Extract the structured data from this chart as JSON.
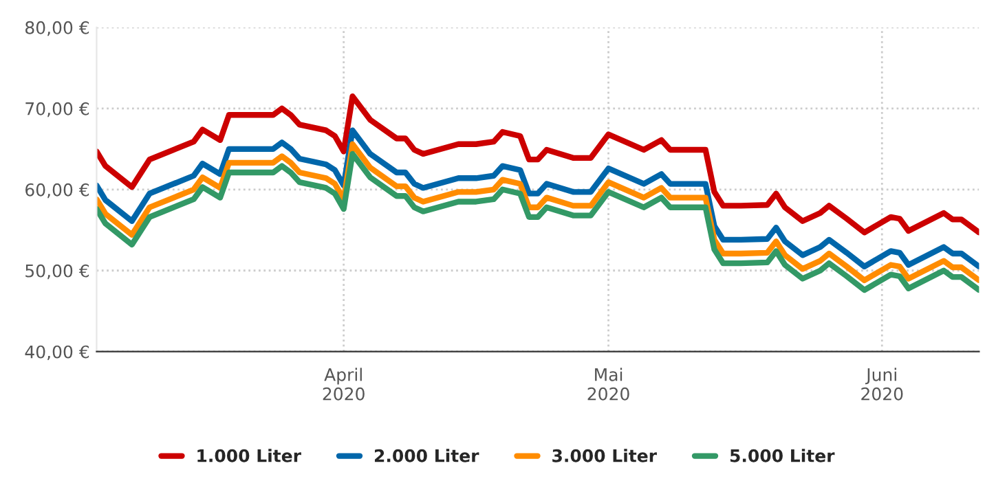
{
  "chart_data": {
    "type": "line",
    "x": [
      "2020-03-04",
      "2020-03-05",
      "2020-03-08",
      "2020-03-10",
      "2020-03-15",
      "2020-03-16",
      "2020-03-18",
      "2020-03-19",
      "2020-03-24",
      "2020-03-25",
      "2020-03-26",
      "2020-03-27",
      "2020-03-30",
      "2020-03-31",
      "2020-04-01",
      "2020-04-02",
      "2020-04-04",
      "2020-04-07",
      "2020-04-08",
      "2020-04-09",
      "2020-04-10",
      "2020-04-14",
      "2020-04-16",
      "2020-04-18",
      "2020-04-19",
      "2020-04-21",
      "2020-04-22",
      "2020-04-23",
      "2020-04-24",
      "2020-04-27",
      "2020-04-29",
      "2020-05-01",
      "2020-05-05",
      "2020-05-07",
      "2020-05-08",
      "2020-05-12",
      "2020-05-13",
      "2020-05-14",
      "2020-05-16",
      "2020-05-19",
      "2020-05-20",
      "2020-05-21",
      "2020-05-23",
      "2020-05-25",
      "2020-05-26",
      "2020-05-28",
      "2020-05-30",
      "2020-06-02",
      "2020-06-03",
      "2020-06-04",
      "2020-06-08",
      "2020-06-09",
      "2020-06-10",
      "2020-06-12"
    ],
    "series": [
      {
        "name": "1.000 Liter",
        "color": "#cc0000",
        "values": [
          64.7,
          62.9,
          60.3,
          63.7,
          65.9,
          67.4,
          66.1,
          69.2,
          69.2,
          70.0,
          69.2,
          68.0,
          67.3,
          66.6,
          64.7,
          71.5,
          68.6,
          66.3,
          66.3,
          64.9,
          64.4,
          65.6,
          65.6,
          65.9,
          67.1,
          66.6,
          63.7,
          63.7,
          64.9,
          63.9,
          63.9,
          66.8,
          64.9,
          66.1,
          64.9,
          64.9,
          59.7,
          58.0,
          58.0,
          58.1,
          59.5,
          57.8,
          56.1,
          57.1,
          58.0,
          56.4,
          54.7,
          56.6,
          56.4,
          54.9,
          57.1,
          56.3,
          56.3,
          54.7
        ]
      },
      {
        "name": "2.000 Liter",
        "color": "#0066aa",
        "values": [
          60.5,
          58.7,
          56.1,
          59.5,
          61.7,
          63.2,
          61.9,
          65.0,
          65.0,
          65.8,
          65.0,
          63.8,
          63.1,
          62.4,
          60.5,
          67.3,
          64.4,
          62.1,
          62.1,
          60.7,
          60.2,
          61.4,
          61.4,
          61.7,
          62.9,
          62.4,
          59.5,
          59.5,
          60.7,
          59.7,
          59.7,
          62.6,
          60.7,
          61.9,
          60.7,
          60.7,
          55.5,
          53.8,
          53.8,
          53.9,
          55.3,
          53.6,
          51.9,
          52.9,
          53.8,
          52.2,
          50.5,
          52.4,
          52.2,
          50.7,
          52.9,
          52.1,
          52.1,
          50.5
        ]
      },
      {
        "name": "3.000 Liter",
        "color": "#ff8c00",
        "values": [
          58.8,
          57.0,
          54.4,
          57.8,
          60.0,
          61.5,
          60.2,
          63.3,
          63.3,
          64.1,
          63.3,
          62.1,
          61.4,
          60.7,
          58.8,
          65.6,
          62.7,
          60.4,
          60.4,
          59.0,
          58.5,
          59.7,
          59.7,
          60.0,
          61.2,
          60.7,
          57.8,
          57.8,
          59.0,
          58.0,
          58.0,
          60.9,
          59.0,
          60.2,
          59.0,
          59.0,
          53.8,
          52.1,
          52.1,
          52.2,
          53.6,
          51.9,
          50.2,
          51.2,
          52.1,
          50.5,
          48.8,
          50.7,
          50.5,
          49.0,
          51.2,
          50.4,
          50.4,
          48.8
        ]
      },
      {
        "name": "5.000 Liter",
        "color": "#339966",
        "values": [
          57.6,
          55.8,
          53.2,
          56.6,
          58.8,
          60.3,
          59.0,
          62.1,
          62.1,
          62.9,
          62.1,
          60.9,
          60.2,
          59.5,
          57.6,
          64.4,
          61.5,
          59.2,
          59.2,
          57.8,
          57.3,
          58.5,
          58.5,
          58.8,
          60.0,
          59.5,
          56.6,
          56.6,
          57.8,
          56.8,
          56.8,
          59.7,
          57.8,
          59.0,
          57.8,
          57.8,
          52.6,
          50.9,
          50.9,
          51.0,
          52.4,
          50.7,
          49.0,
          50.0,
          50.9,
          49.3,
          47.6,
          49.5,
          49.3,
          47.8,
          50.0,
          49.2,
          49.2,
          47.6
        ]
      }
    ],
    "xlim": [
      "2020-03-04",
      "2020-06-12"
    ],
    "xticks": [
      {
        "value": "2020-04-01",
        "label": "April\n2020"
      },
      {
        "value": "2020-05-01",
        "label": "Mai\n2020"
      },
      {
        "value": "2020-06-01",
        "label": "Juni\n2020"
      }
    ],
    "ylim": [
      40,
      80
    ],
    "yticks": [
      {
        "value": 40,
        "label": "40,00 €"
      },
      {
        "value": 50,
        "label": "50,00 €"
      },
      {
        "value": 60,
        "label": "60,00 €"
      },
      {
        "value": 70,
        "label": "70,00 €"
      },
      {
        "value": 80,
        "label": "80,00 €"
      }
    ],
    "grid": true,
    "legend": "bottom",
    "marker": "none",
    "line_style": "solid"
  }
}
